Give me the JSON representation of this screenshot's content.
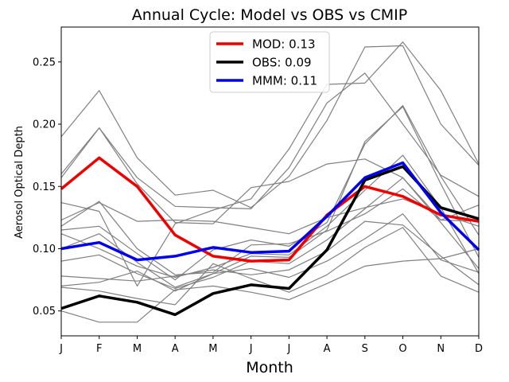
{
  "chart_data": {
    "type": "line",
    "title": "Annual Cycle: Model vs OBS vs CMIP",
    "xlabel": "Month",
    "ylabel": "Aerosol Optical Depth",
    "categories": [
      "J",
      "F",
      "M",
      "A",
      "M",
      "J",
      "J",
      "A",
      "S",
      "O",
      "N",
      "D"
    ],
    "ylim": [
      0.03,
      0.278
    ],
    "yticks": [
      0.05,
      0.1,
      0.15,
      0.2,
      0.25
    ],
    "ytick_labels": [
      "0.05",
      "0.10",
      "0.15",
      "0.20",
      "0.25"
    ],
    "grid": false,
    "legend_position": "top-center",
    "series": [
      {
        "name": "MOD",
        "label": "MOD: 0.13",
        "color": "#ee0000",
        "values": [
          0.148,
          0.173,
          0.15,
          0.111,
          0.094,
          0.09,
          0.091,
          0.127,
          0.15,
          0.142,
          0.127,
          0.122
        ]
      },
      {
        "name": "OBS",
        "label": "OBS: 0.09",
        "color": "#000000",
        "values": [
          0.052,
          0.062,
          0.057,
          0.047,
          0.064,
          0.071,
          0.068,
          0.099,
          0.155,
          0.166,
          0.133,
          0.124
        ]
      },
      {
        "name": "MMM",
        "label": "MMM: 0.11",
        "color": "#0000ee",
        "values": [
          0.1,
          0.105,
          0.091,
          0.094,
          0.101,
          0.097,
          0.098,
          0.126,
          0.157,
          0.169,
          0.129,
          0.099
        ]
      }
    ],
    "cmip_color": "#808080",
    "cmip_models": [
      [
        0.19,
        0.227,
        0.173,
        0.143,
        0.147,
        0.133,
        0.158,
        0.203,
        0.262,
        0.263,
        0.2,
        0.167
      ],
      [
        0.16,
        0.197,
        0.157,
        0.134,
        0.133,
        0.132,
        0.165,
        0.217,
        0.241,
        0.2,
        0.159,
        0.142
      ],
      [
        0.157,
        0.197,
        0.152,
        0.121,
        0.12,
        0.149,
        0.154,
        0.168,
        0.172,
        0.157,
        0.123,
        0.135
      ],
      [
        0.123,
        0.137,
        0.122,
        0.123,
        0.122,
        0.117,
        0.112,
        0.125,
        0.133,
        0.14,
        0.128,
        0.118
      ],
      [
        0.118,
        0.138,
        0.1,
        0.079,
        0.081,
        0.103,
        0.104,
        0.114,
        0.128,
        0.148,
        0.123,
        0.122
      ],
      [
        0.137,
        0.13,
        0.07,
        0.12,
        0.131,
        0.14,
        0.18,
        0.232,
        0.233,
        0.266,
        0.227,
        0.168
      ],
      [
        0.115,
        0.118,
        0.096,
        0.075,
        0.099,
        0.107,
        0.102,
        0.121,
        0.184,
        0.215,
        0.158,
        0.111
      ],
      [
        0.1,
        0.112,
        0.089,
        0.069,
        0.08,
        0.094,
        0.093,
        0.115,
        0.186,
        0.214,
        0.152,
        0.093
      ],
      [
        0.112,
        0.1,
        0.086,
        0.077,
        0.085,
        0.096,
        0.095,
        0.118,
        0.147,
        0.175,
        0.133,
        0.08
      ],
      [
        0.09,
        0.095,
        0.08,
        0.068,
        0.077,
        0.09,
        0.088,
        0.107,
        0.132,
        0.157,
        0.121,
        0.084
      ],
      [
        0.078,
        0.076,
        0.074,
        0.078,
        0.083,
        0.079,
        0.083,
        0.098,
        0.122,
        0.119,
        0.094,
        0.071
      ],
      [
        0.07,
        0.073,
        0.082,
        0.066,
        0.08,
        0.084,
        0.077,
        0.09,
        0.108,
        0.128,
        0.091,
        0.081
      ],
      [
        0.069,
        0.066,
        0.06,
        0.055,
        0.088,
        0.076,
        0.065,
        0.079,
        0.101,
        0.117,
        0.078,
        0.065
      ],
      [
        0.05,
        0.041,
        0.041,
        0.067,
        0.07,
        0.065,
        0.059,
        0.072,
        0.086,
        0.09,
        0.092,
        0.1
      ]
    ]
  }
}
